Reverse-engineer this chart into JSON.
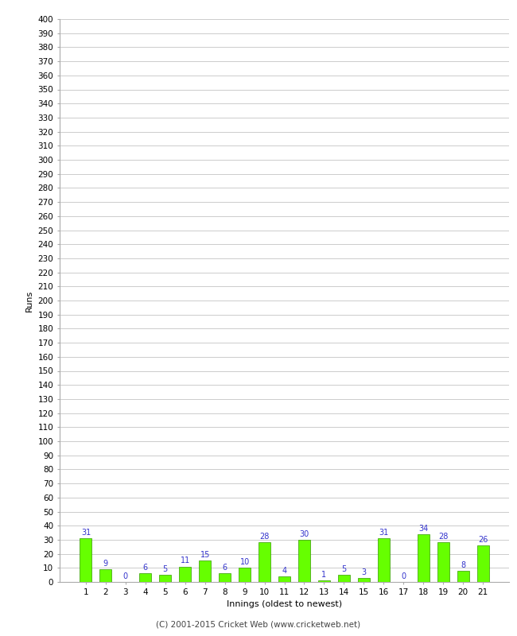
{
  "xlabel": "Innings (oldest to newest)",
  "ylabel": "Runs",
  "categories": [
    1,
    2,
    3,
    4,
    5,
    6,
    7,
    8,
    9,
    10,
    11,
    12,
    13,
    14,
    15,
    16,
    17,
    18,
    19,
    20,
    21
  ],
  "values": [
    31,
    9,
    0,
    6,
    5,
    11,
    15,
    6,
    10,
    28,
    4,
    30,
    1,
    5,
    3,
    31,
    0,
    34,
    28,
    8,
    26
  ],
  "bar_color": "#66ff00",
  "bar_edge_color": "#339900",
  "label_color": "#3333cc",
  "label_fontsize": 7,
  "ylabel_fontsize": 8,
  "xlabel_fontsize": 8,
  "ytick_fontsize": 7.5,
  "xtick_fontsize": 7.5,
  "ylim": [
    0,
    400
  ],
  "ytick_step": 10,
  "background_color": "#ffffff",
  "grid_color": "#cccccc",
  "footer": "(C) 2001-2015 Cricket Web (www.cricketweb.net)",
  "footer_fontsize": 7.5
}
